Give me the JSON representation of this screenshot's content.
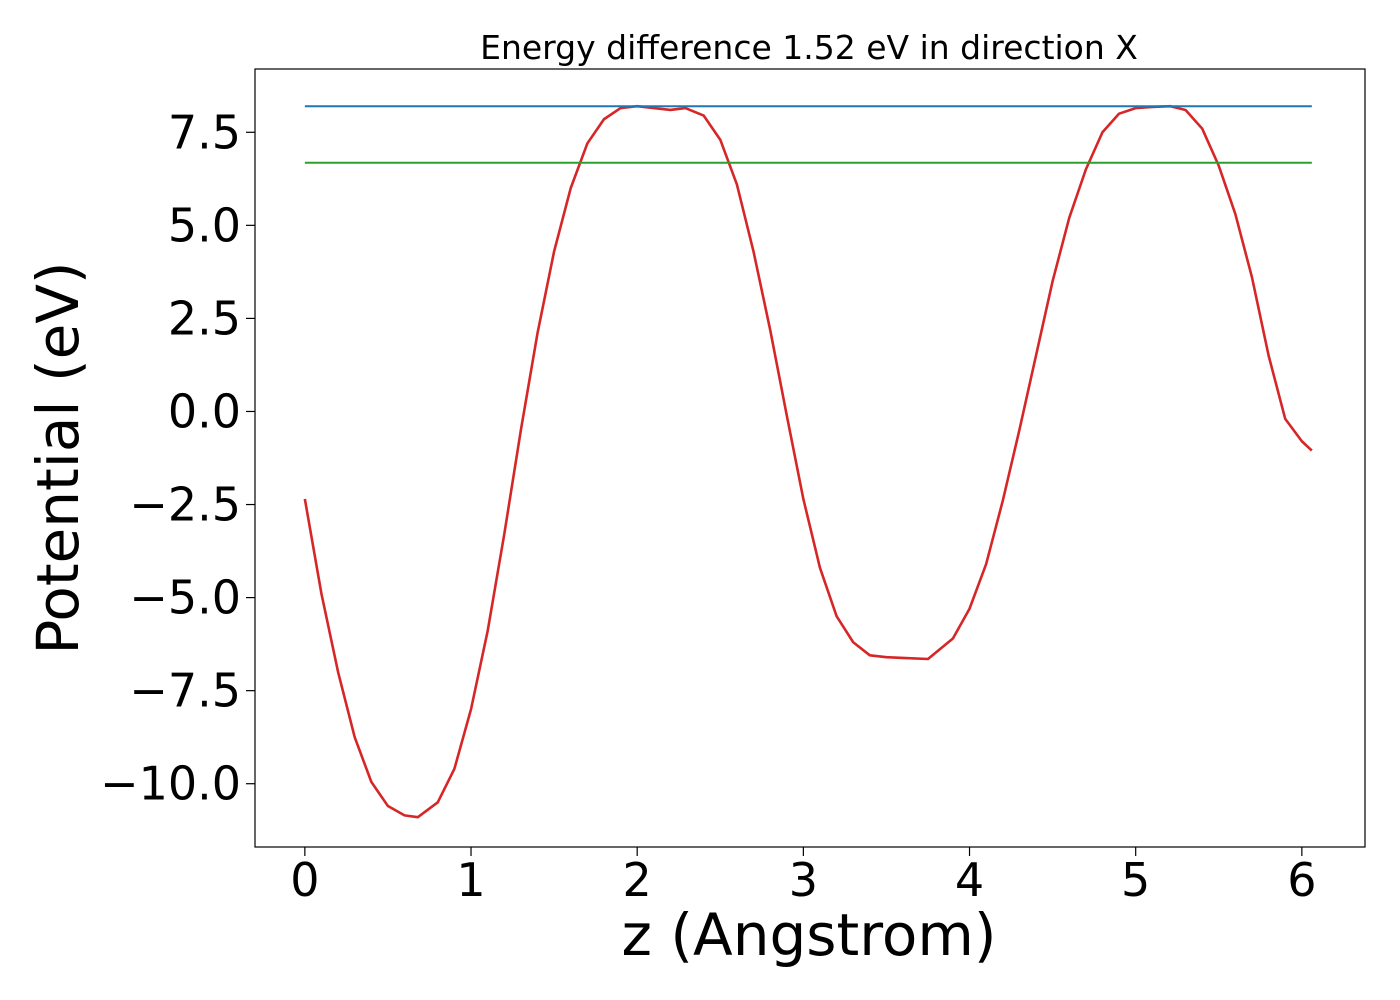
{
  "chart_data": {
    "type": "line",
    "title": "Energy difference 1.52 eV in direction X",
    "xlabel": "z (Angstrom)",
    "ylabel": "Potential (eV)",
    "xlim": [
      -0.3,
      6.38
    ],
    "ylim": [
      -11.7,
      9.2
    ],
    "xticks": [
      0,
      1,
      2,
      3,
      4,
      5,
      6
    ],
    "xtick_labels": [
      "0",
      "1",
      "2",
      "3",
      "4",
      "5",
      "6"
    ],
    "yticks": [
      -10,
      -7.5,
      -5,
      -2.5,
      0,
      2.5,
      5,
      7.5
    ],
    "ytick_labels": [
      "−10.0",
      "−7.5",
      "−5.0",
      "−2.5",
      "0.0",
      "2.5",
      "5.0",
      "7.5"
    ],
    "grid": false,
    "series": [
      {
        "color": "#d62728",
        "style": "curve",
        "x": [
          0.0,
          0.1,
          0.2,
          0.3,
          0.4,
          0.5,
          0.6,
          0.68,
          0.8,
          0.9,
          1.0,
          1.1,
          1.2,
          1.3,
          1.4,
          1.5,
          1.6,
          1.7,
          1.8,
          1.9,
          2.0,
          2.1,
          2.2,
          2.29,
          2.4,
          2.5,
          2.6,
          2.7,
          2.8,
          2.9,
          3.0,
          3.1,
          3.2,
          3.3,
          3.4,
          3.5,
          3.6,
          3.75,
          3.9,
          4.0,
          4.1,
          4.2,
          4.3,
          4.4,
          4.5,
          4.6,
          4.7,
          4.8,
          4.9,
          5.0,
          5.1,
          5.21,
          5.3,
          5.4,
          5.5,
          5.6,
          5.7,
          5.8,
          5.9,
          6.0,
          6.06
        ],
        "y": [
          -2.35,
          -4.9,
          -7.0,
          -8.75,
          -9.95,
          -10.6,
          -10.85,
          -10.9,
          -10.5,
          -9.6,
          -8.0,
          -5.9,
          -3.3,
          -0.5,
          2.1,
          4.3,
          6.0,
          7.2,
          7.85,
          8.15,
          8.2,
          8.15,
          8.1,
          8.15,
          7.95,
          7.3,
          6.1,
          4.3,
          2.2,
          -0.1,
          -2.35,
          -4.2,
          -5.5,
          -6.2,
          -6.55,
          -6.6,
          -6.62,
          -6.65,
          -6.1,
          -5.3,
          -4.1,
          -2.4,
          -0.5,
          1.5,
          3.5,
          5.2,
          6.5,
          7.5,
          8.0,
          8.15,
          8.18,
          8.2,
          8.1,
          7.6,
          6.6,
          5.3,
          3.6,
          1.5,
          -0.2,
          -0.8,
          -1.05
        ]
      },
      {
        "color": "#1f77b4",
        "style": "hline",
        "x": [
          0.0,
          6.06
        ],
        "y": [
          8.2,
          8.2
        ]
      },
      {
        "color": "#2ca02c",
        "style": "hline",
        "x": [
          0.0,
          6.06
        ],
        "y": [
          6.68,
          6.68
        ]
      }
    ]
  }
}
